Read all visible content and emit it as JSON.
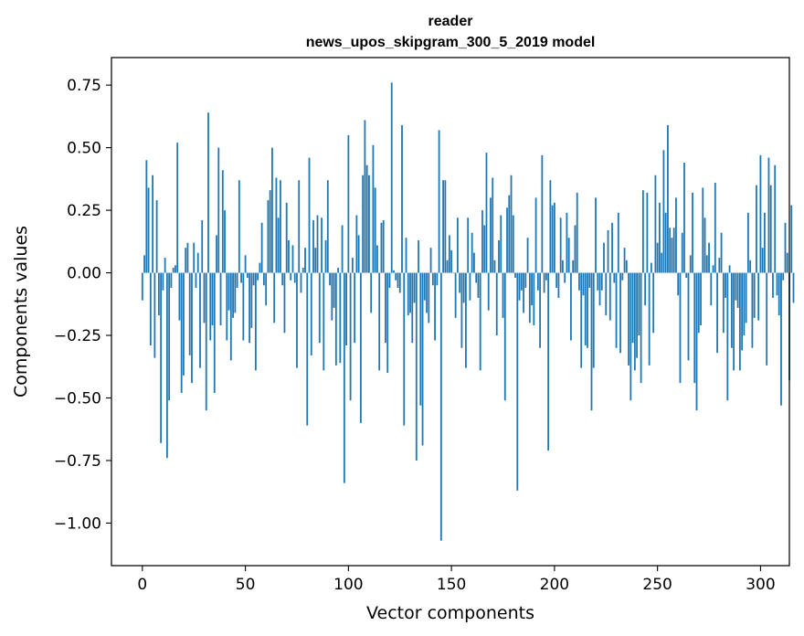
{
  "chart_data": {
    "type": "bar",
    "title_line1": "reader",
    "title_line2": "news_upos_skipgram_300_5_2019 model",
    "xlabel": "Vector components",
    "ylabel": "Components values",
    "xlim": [
      -15,
      314
    ],
    "ylim": [
      -1.17,
      0.86
    ],
    "xticks": [
      0,
      50,
      100,
      150,
      200,
      250,
      300
    ],
    "xtick_labels": [
      "0",
      "50",
      "100",
      "150",
      "200",
      "250",
      "300"
    ],
    "yticks": [
      -1.0,
      -0.75,
      -0.5,
      -0.25,
      0.0,
      0.25,
      0.5,
      0.75
    ],
    "ytick_labels": [
      "−1.00",
      "−0.75",
      "−0.50",
      "−0.25",
      "0.00",
      "0.25",
      "0.50",
      "0.75"
    ],
    "bar_color": "#1f77b4",
    "values": [
      -0.11,
      0.07,
      0.45,
      0.34,
      -0.29,
      0.39,
      -0.34,
      0.29,
      -0.17,
      -0.68,
      -0.07,
      0.06,
      -0.74,
      -0.51,
      -0.06,
      0.02,
      0.03,
      0.52,
      -0.19,
      -0.48,
      -0.41,
      0.1,
      0.12,
      -0.33,
      -0.44,
      0.12,
      -0.06,
      0.08,
      -0.38,
      0.21,
      -0.2,
      -0.55,
      0.64,
      -0.27,
      -0.21,
      -0.48,
      0.15,
      0.5,
      -0.21,
      0.41,
      0.25,
      -0.27,
      -0.15,
      -0.35,
      -0.18,
      -0.16,
      -0.06,
      0.37,
      -0.04,
      -0.27,
      0.07,
      -0.02,
      -0.28,
      -0.22,
      -0.05,
      -0.39,
      -0.03,
      0.04,
      0.2,
      -0.05,
      -0.13,
      0.29,
      0.33,
      0.5,
      -0.2,
      0.38,
      0.22,
      0.37,
      -0.05,
      -0.24,
      0.28,
      0.13,
      -0.03,
      0.11,
      -0.04,
      -0.38,
      0.37,
      -0.08,
      0.02,
      0.1,
      -0.61,
      0.46,
      -0.33,
      0.21,
      0.1,
      0.23,
      -0.28,
      0.22,
      -0.39,
      0.13,
      0.37,
      -0.05,
      -0.19,
      -0.14,
      -0.37,
      0.02,
      -0.36,
      0.19,
      -0.84,
      -0.29,
      0.55,
      -0.51,
      0.06,
      -0.28,
      0.23,
      0.15,
      -0.6,
      0.39,
      0.61,
      0.43,
      0.39,
      -0.16,
      0.51,
      0.34,
      0.11,
      -0.39,
      0.2,
      0.21,
      -0.28,
      -0.4,
      -0.06,
      0.76,
      0.01,
      -0.03,
      -0.06,
      -0.08,
      0.59,
      -0.61,
      0.14,
      -0.17,
      -0.16,
      -0.28,
      -0.12,
      -0.75,
      0.13,
      -0.53,
      -0.69,
      -0.11,
      -0.16,
      -0.2,
      0.1,
      -0.05,
      -0.27,
      -0.05,
      0.57,
      -1.07,
      0.37,
      0.37,
      0.05,
      0.15,
      0.09,
      0.0,
      -0.18,
      0.22,
      -0.08,
      -0.3,
      -0.12,
      -0.38,
      0.22,
      -0.11,
      0.16,
      0.08,
      -0.04,
      -0.1,
      -0.39,
      0.25,
      0.19,
      0.48,
      -0.15,
      0.3,
      0.38,
      0.05,
      -0.25,
      0.13,
      0.23,
      -0.18,
      -0.51,
      0.26,
      0.31,
      0.39,
      0.23,
      -0.02,
      -0.87,
      -0.11,
      -0.07,
      -0.16,
      -0.06,
      0.14,
      -0.2,
      -0.13,
      -0.21,
      0.3,
      -0.07,
      -0.3,
      0.47,
      -0.08,
      -0.03,
      -0.71,
      0.37,
      0.27,
      0.28,
      -0.06,
      -0.1,
      0.22,
      0.05,
      -0.04,
      0.24,
      0.14,
      -0.27,
      0.05,
      0.19,
      0.32,
      -0.07,
      -0.38,
      -0.09,
      -0.29,
      -0.3,
      -0.06,
      -0.55,
      -0.38,
      0.3,
      -0.07,
      -0.13,
      -0.07,
      0.12,
      -0.17,
      0.17,
      -0.19,
      0.2,
      -0.04,
      -0.3,
      0.24,
      -0.32,
      -0.03,
      0.1,
      0.05,
      -0.37,
      -0.51,
      -0.28,
      -0.39,
      -0.34,
      -0.25,
      -0.44,
      0.33,
      -0.13,
      0.32,
      -0.37,
      0.04,
      -0.24,
      0.39,
      0.12,
      0.28,
      0.08,
      0.49,
      0.24,
      0.59,
      0.18,
      0.14,
      0.18,
      0.3,
      -0.09,
      -0.44,
      0.16,
      0.44,
      -0.02,
      -0.35,
      0.07,
      0.32,
      -0.44,
      -0.55,
      -0.24,
      -0.21,
      0.34,
      0.22,
      0.07,
      0.12,
      -0.13,
      0.03,
      0.36,
      -0.32,
      0.06,
      0.16,
      -0.24,
      -0.1,
      -0.51,
      0.03,
      -0.3,
      -0.39,
      -0.11,
      -0.14,
      -0.39,
      -0.31,
      -0.25,
      -0.2,
      0.24,
      0.05,
      -0.3,
      -0.18,
      0.35,
      -0.19,
      0.47,
      0.1,
      0.24,
      -0.37,
      0.46,
      0.35,
      -0.1,
      0.43,
      -0.09,
      -0.17,
      -0.53,
      -0.03,
      0.2,
      0.08,
      -0.43,
      0.27,
      -0.12
    ]
  }
}
